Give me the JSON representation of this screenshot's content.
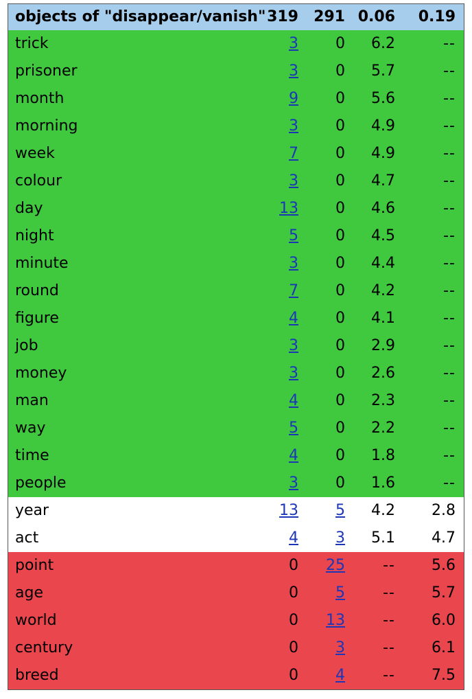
{
  "header": {
    "label": "objects of \"disappear/vanish\"",
    "col1": "319",
    "col2": "291",
    "col3": "0.06",
    "col4": "0.19"
  },
  "rows": [
    {
      "word": "trick",
      "c1": "3",
      "c1_link": true,
      "c2": "0",
      "c2_link": false,
      "s1": "6.2",
      "s2": "--",
      "group": "green"
    },
    {
      "word": "prisoner",
      "c1": "3",
      "c1_link": true,
      "c2": "0",
      "c2_link": false,
      "s1": "5.7",
      "s2": "--",
      "group": "green"
    },
    {
      "word": "month",
      "c1": "9",
      "c1_link": true,
      "c2": "0",
      "c2_link": false,
      "s1": "5.6",
      "s2": "--",
      "group": "green"
    },
    {
      "word": "morning",
      "c1": "3",
      "c1_link": true,
      "c2": "0",
      "c2_link": false,
      "s1": "4.9",
      "s2": "--",
      "group": "green"
    },
    {
      "word": "week",
      "c1": "7",
      "c1_link": true,
      "c2": "0",
      "c2_link": false,
      "s1": "4.9",
      "s2": "--",
      "group": "green"
    },
    {
      "word": "colour",
      "c1": "3",
      "c1_link": true,
      "c2": "0",
      "c2_link": false,
      "s1": "4.7",
      "s2": "--",
      "group": "green"
    },
    {
      "word": "day",
      "c1": "13",
      "c1_link": true,
      "c2": "0",
      "c2_link": false,
      "s1": "4.6",
      "s2": "--",
      "group": "green"
    },
    {
      "word": "night",
      "c1": "5",
      "c1_link": true,
      "c2": "0",
      "c2_link": false,
      "s1": "4.5",
      "s2": "--",
      "group": "green"
    },
    {
      "word": "minute",
      "c1": "3",
      "c1_link": true,
      "c2": "0",
      "c2_link": false,
      "s1": "4.4",
      "s2": "--",
      "group": "green"
    },
    {
      "word": "round",
      "c1": "7",
      "c1_link": true,
      "c2": "0",
      "c2_link": false,
      "s1": "4.2",
      "s2": "--",
      "group": "green"
    },
    {
      "word": "figure",
      "c1": "4",
      "c1_link": true,
      "c2": "0",
      "c2_link": false,
      "s1": "4.1",
      "s2": "--",
      "group": "green"
    },
    {
      "word": "job",
      "c1": "3",
      "c1_link": true,
      "c2": "0",
      "c2_link": false,
      "s1": "2.9",
      "s2": "--",
      "group": "green"
    },
    {
      "word": "money",
      "c1": "3",
      "c1_link": true,
      "c2": "0",
      "c2_link": false,
      "s1": "2.6",
      "s2": "--",
      "group": "green"
    },
    {
      "word": "man",
      "c1": "4",
      "c1_link": true,
      "c2": "0",
      "c2_link": false,
      "s1": "2.3",
      "s2": "--",
      "group": "green"
    },
    {
      "word": "way",
      "c1": "5",
      "c1_link": true,
      "c2": "0",
      "c2_link": false,
      "s1": "2.2",
      "s2": "--",
      "group": "green"
    },
    {
      "word": "time",
      "c1": "4",
      "c1_link": true,
      "c2": "0",
      "c2_link": false,
      "s1": "1.8",
      "s2": "--",
      "group": "green"
    },
    {
      "word": "people",
      "c1": "3",
      "c1_link": true,
      "c2": "0",
      "c2_link": false,
      "s1": "1.6",
      "s2": "--",
      "group": "green"
    },
    {
      "word": "year",
      "c1": "13",
      "c1_link": true,
      "c2": "5",
      "c2_link": true,
      "s1": "4.2",
      "s2": "2.8",
      "group": "white"
    },
    {
      "word": "act",
      "c1": "4",
      "c1_link": true,
      "c2": "3",
      "c2_link": true,
      "s1": "5.1",
      "s2": "4.7",
      "group": "white"
    },
    {
      "word": "point",
      "c1": "0",
      "c1_link": false,
      "c2": "25",
      "c2_link": true,
      "s1": "--",
      "s2": "5.6",
      "group": "red"
    },
    {
      "word": "age",
      "c1": "0",
      "c1_link": false,
      "c2": "5",
      "c2_link": true,
      "s1": "--",
      "s2": "5.7",
      "group": "red"
    },
    {
      "word": "world",
      "c1": "0",
      "c1_link": false,
      "c2": "13",
      "c2_link": true,
      "s1": "--",
      "s2": "6.0",
      "group": "red"
    },
    {
      "word": "century",
      "c1": "0",
      "c1_link": false,
      "c2": "3",
      "c2_link": true,
      "s1": "--",
      "s2": "6.1",
      "group": "red"
    },
    {
      "word": "breed",
      "c1": "0",
      "c1_link": false,
      "c2": "4",
      "c2_link": true,
      "s1": "--",
      "s2": "7.5",
      "group": "red"
    }
  ],
  "colors": {
    "header_bg": "#a6cdeb",
    "green_bg": "#40c83f",
    "white_bg": "#ffffff",
    "red_bg": "#ea464d",
    "link": "#1b36b8"
  }
}
